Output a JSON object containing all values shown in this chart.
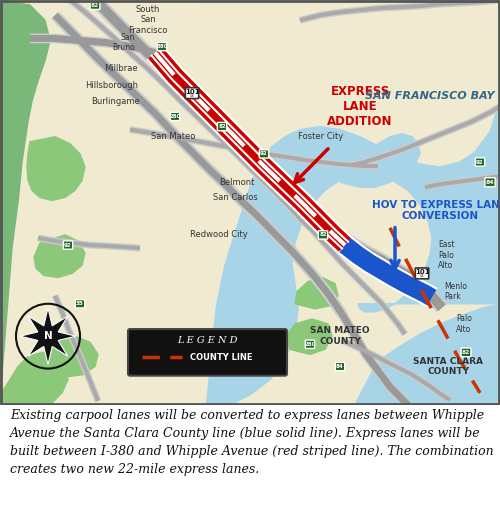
{
  "fig_width": 5.0,
  "fig_height": 5.26,
  "dpi": 100,
  "map_bg_color": "#f5f0e0",
  "bay_color": "#a8d8e8",
  "green_land_color": "#8cc87a",
  "light_green_color": "#b8d89a",
  "road_bg_color": "#cccccc",
  "road_fg_color": "#888888",
  "red_lane_color": "#cc0000",
  "blue_lane_color": "#1a55cc",
  "county_line_color": "#cc3300",
  "caption_text": "Existing carpool lanes will be converted to express lanes between Whipple\nAvenue the Santa Clara County line (blue solid line). Express lanes will be\nbuilt between I-380 and Whipple Avenue (red striped line). The combination\ncreates two new 22-mile express lanes.",
  "caption_fontsize": 9,
  "express_label": "EXPRESS\nLANE\nADDITION",
  "hov_label": "HOV TO EXPRESS LANE\nCONVERSION",
  "sf_bay_label": "SAN FRANCISCO BAY",
  "sm_county_label": "SAN MATEO\nCOUNTY",
  "sc_county_label": "SANTA CLARA\nCOUNTY",
  "legend_county_line": "COUNTY LINE"
}
